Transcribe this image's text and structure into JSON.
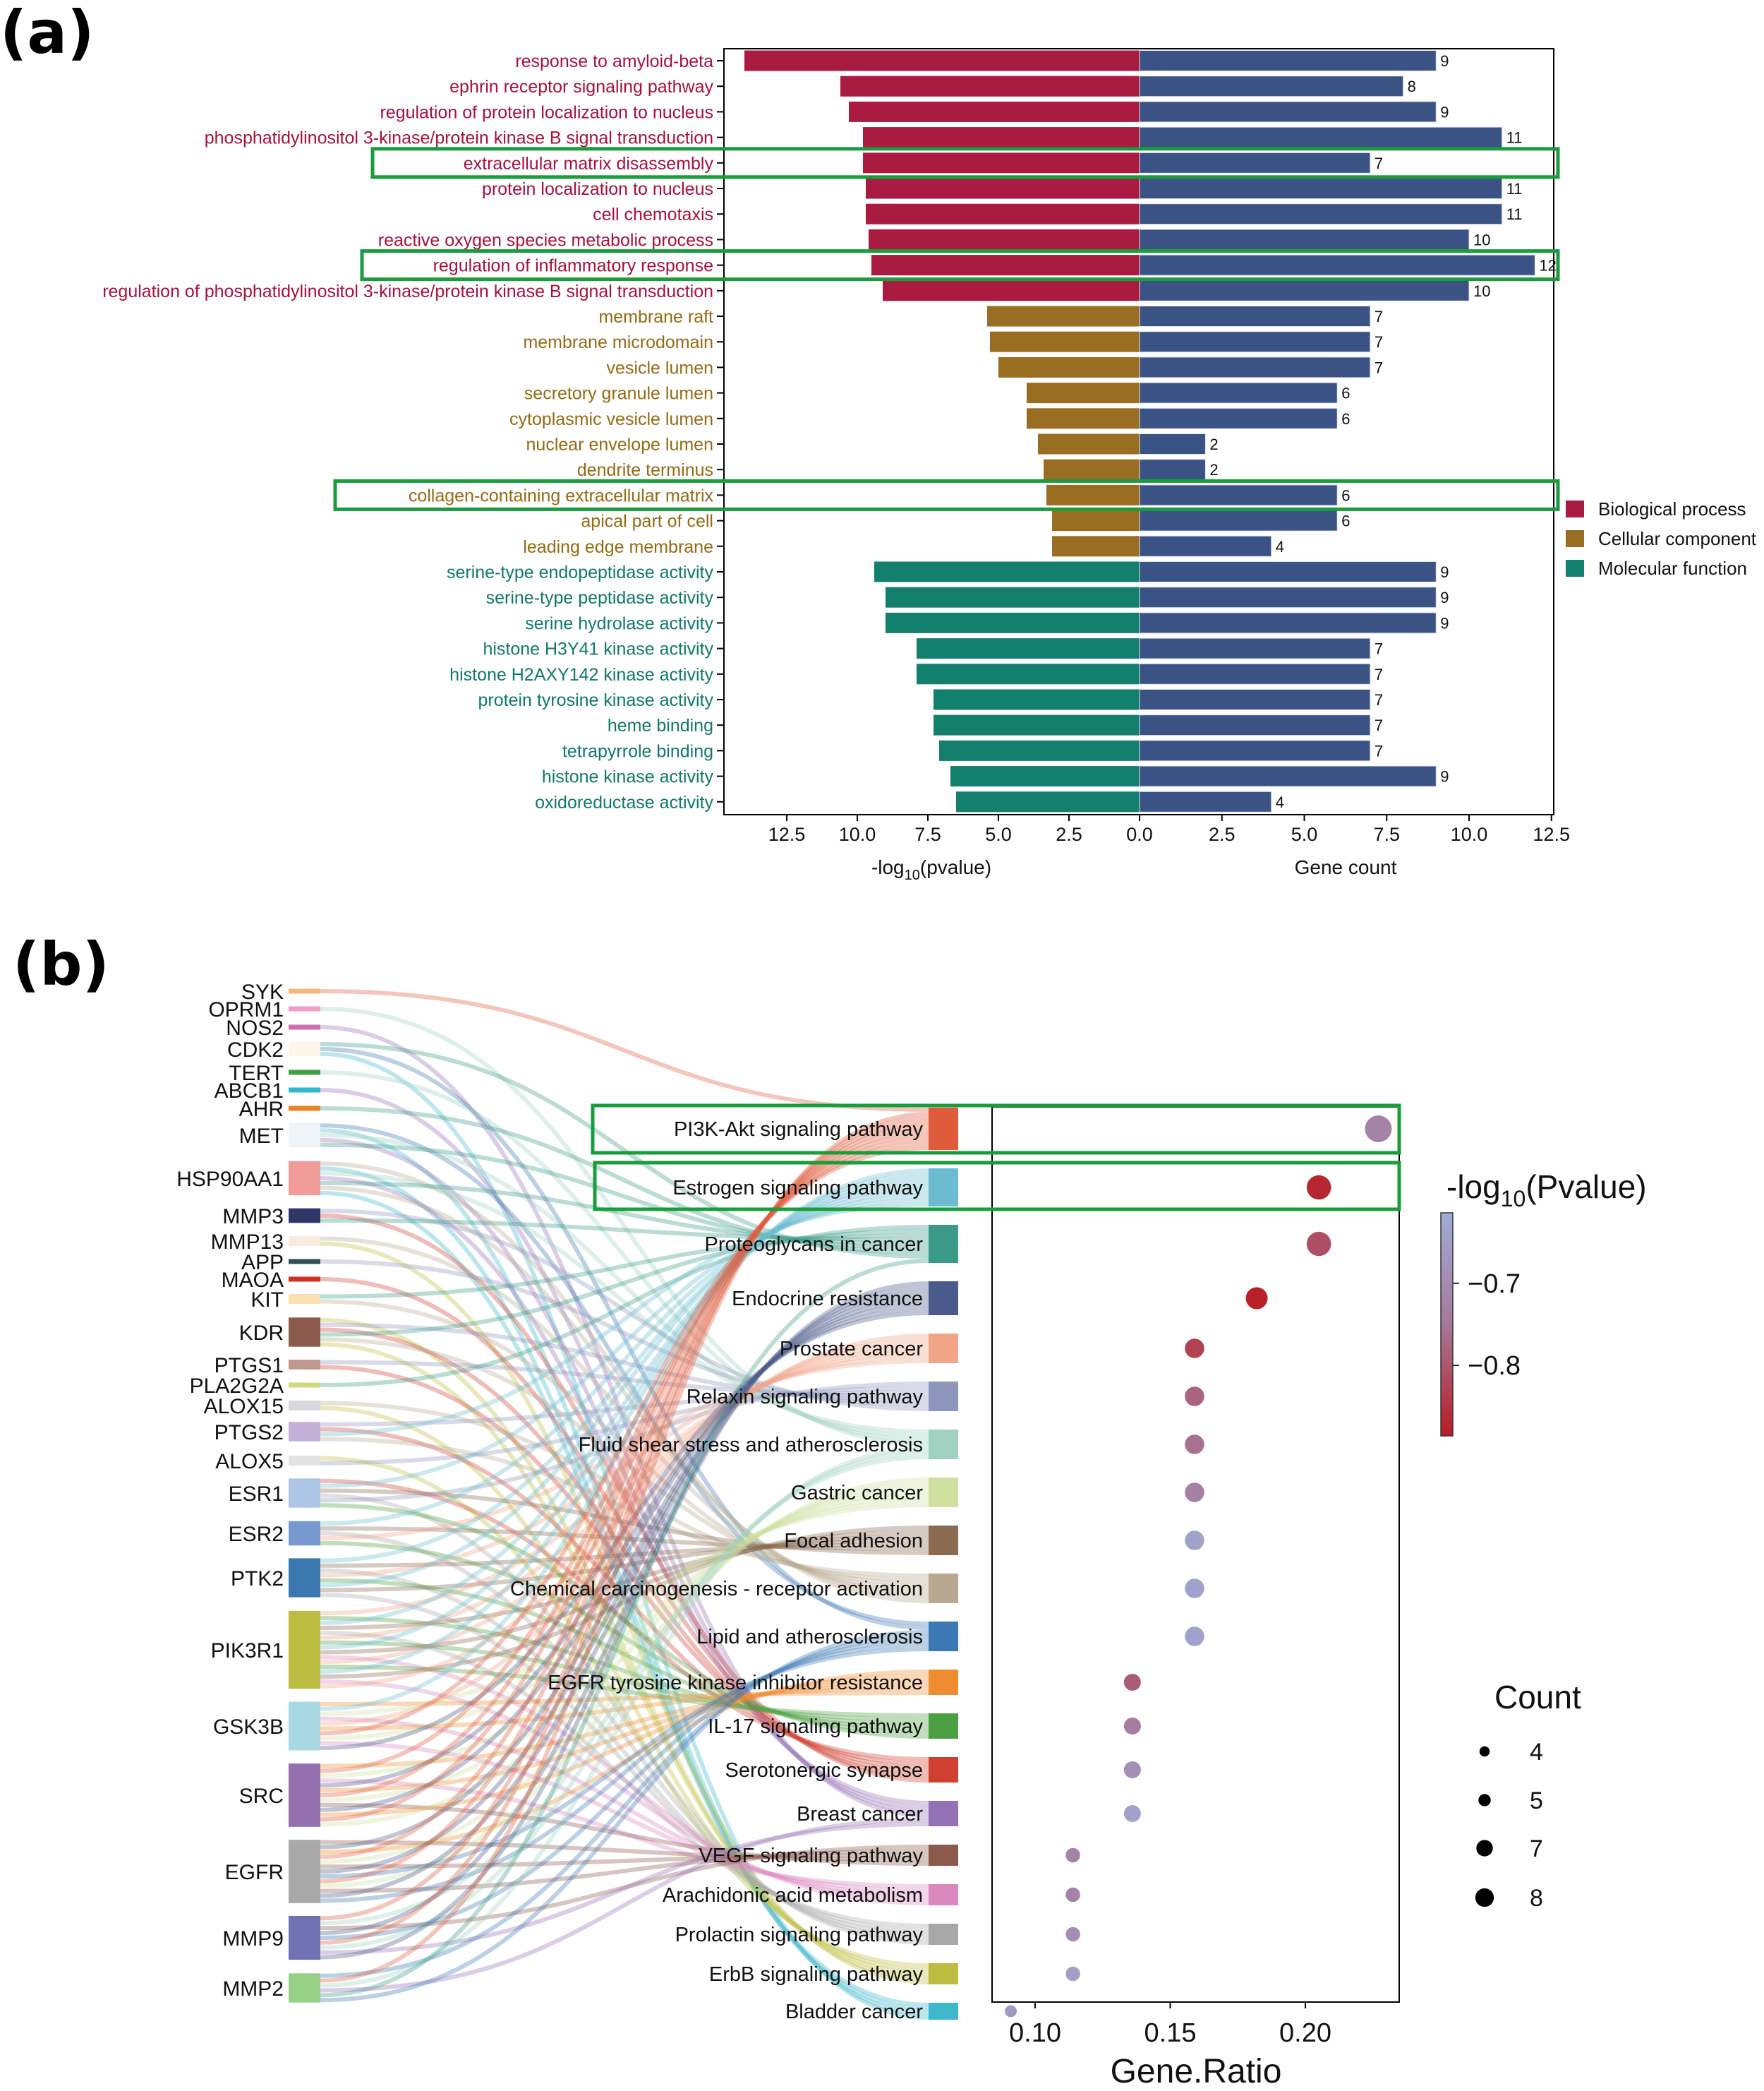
{
  "panel_labels": {
    "a": "(a)",
    "b": "(b)"
  },
  "chart_data": [
    {
      "type": "bar",
      "panel": "(a)",
      "layout": "diverging horizontal bar",
      "categories": [
        "response to amyloid-beta",
        "ephrin receptor signaling pathway",
        "regulation of protein localization to nucleus",
        "phosphatidylinositol 3-kinase/protein kinase B signal transduction",
        "extracellular matrix disassembly",
        "protein localization to nucleus",
        "cell chemotaxis",
        "reactive oxygen species metabolic process",
        "regulation of inflammatory response",
        "regulation of phosphatidylinositol 3-kinase/protein kinase B signal transduction",
        "membrane raft",
        "membrane microdomain",
        "vesicle lumen",
        "secretory granule lumen",
        "cytoplasmic vesicle lumen",
        "nuclear envelope lumen",
        "dendrite terminus",
        "collagen-containing extracellular matrix",
        "apical part of cell",
        "leading edge membrane",
        "serine-type endopeptidase activity",
        "serine-type peptidase activity",
        "serine hydrolase activity",
        "histone H3Y41 kinase activity",
        "histone H2AXY142 kinase activity",
        "protein tyrosine kinase activity",
        "heme binding",
        "tetrapyrrole binding",
        "histone kinase activity",
        "oxidoreductase activity"
      ],
      "group": [
        "BP",
        "BP",
        "BP",
        "BP",
        "BP",
        "BP",
        "BP",
        "BP",
        "BP",
        "BP",
        "CC",
        "CC",
        "CC",
        "CC",
        "CC",
        "CC",
        "CC",
        "CC",
        "CC",
        "CC",
        "MF",
        "MF",
        "MF",
        "MF",
        "MF",
        "MF",
        "MF",
        "MF",
        "MF",
        "MF"
      ],
      "neg_log10_pvalue": [
        14.0,
        10.6,
        10.3,
        9.8,
        9.8,
        9.7,
        9.7,
        9.6,
        9.5,
        9.1,
        5.4,
        5.3,
        5.0,
        4.0,
        4.0,
        3.6,
        3.4,
        3.3,
        3.1,
        3.1,
        9.4,
        9.0,
        9.0,
        7.9,
        7.9,
        7.3,
        7.3,
        7.1,
        6.7,
        6.5
      ],
      "gene_count": [
        9,
        8,
        9,
        11,
        7,
        11,
        11,
        10,
        12,
        10,
        7,
        7,
        7,
        6,
        6,
        2,
        2,
        6,
        6,
        4,
        9,
        9,
        9,
        7,
        7,
        7,
        7,
        7,
        9,
        4
      ],
      "gene_count_labels": [
        "9",
        "8",
        "9",
        "11",
        "7",
        "11",
        "11",
        "10",
        "12",
        "10",
        "7",
        "7",
        "7",
        "6",
        "6",
        "2",
        "2",
        "6",
        "6",
        "4",
        "9",
        "9",
        "9",
        "7",
        "7",
        "7",
        "7",
        "7",
        "9",
        "4"
      ],
      "highlighted": [
        "extracellular matrix disassembly",
        "regulation of inflammatory response",
        "collagen-containing extracellular matrix"
      ],
      "xlabel_left": "-log",
      "xlabel_left_sub": "10",
      "xlabel_left_tail": "(pvalue)",
      "xlabel_right": "Gene count",
      "xlim_left": [
        0,
        14.4
      ],
      "xlim_right": [
        0,
        12.55
      ],
      "left_ticks": [
        "12.5",
        "10.0",
        "7.5",
        "5.0",
        "2.5",
        "0.0"
      ],
      "left_tick_values": [
        12.5,
        10,
        7.5,
        5,
        2.5,
        0
      ],
      "right_ticks": [
        "2.5",
        "5.0",
        "7.5",
        "10.0",
        "12.5"
      ],
      "right_tick_values": [
        2.5,
        5,
        7.5,
        10,
        12.5
      ],
      "grid": false,
      "legend_position": "right",
      "legend": [
        {
          "key": "BP",
          "label": "Biological process",
          "color": "#a91b40"
        },
        {
          "key": "CC",
          "label": "Cellular component",
          "color": "#9a6e22"
        },
        {
          "key": "MF",
          "label": "Molecular function",
          "color": "#137f6d"
        }
      ],
      "count_bar_color": "#3b5284",
      "label_colors": {
        "BP": "#a8103c",
        "CC": "#956a12",
        "MF": "#0f7a66"
      },
      "highlight_color": "#1a9c3c"
    },
    {
      "type": "sankey",
      "panel": "(b)",
      "genes": [
        {
          "name": "SYK",
          "links": 1,
          "color": "#f5b878"
        },
        {
          "name": "OPRM1",
          "links": 1,
          "color": "#f0a0c4"
        },
        {
          "name": "NOS2",
          "links": 1,
          "color": "#cf6fae"
        },
        {
          "name": "CDK2",
          "links": 3,
          "color": "#fff5e8"
        },
        {
          "name": "TERT",
          "links": 1,
          "color": "#40a040"
        },
        {
          "name": "ABCB1",
          "links": 1,
          "color": "#30b8cc"
        },
        {
          "name": "AHR",
          "links": 1,
          "color": "#f08020"
        },
        {
          "name": "MET",
          "links": 5,
          "color": "#eef4f8"
        },
        {
          "name": "HSP90AA1",
          "links": 7,
          "color": "#f29c9a"
        },
        {
          "name": "MMP3",
          "links": 3,
          "color": "#2f3768"
        },
        {
          "name": "MMP13",
          "links": 2,
          "color": "#f8eadc"
        },
        {
          "name": "APP",
          "links": 1,
          "color": "#2f5050"
        },
        {
          "name": "MAOA",
          "links": 1,
          "color": "#d03020"
        },
        {
          "name": "KIT",
          "links": 2,
          "color": "#fde0b0"
        },
        {
          "name": "KDR",
          "links": 6,
          "color": "#8c5a4c"
        },
        {
          "name": "PTGS1",
          "links": 2,
          "color": "#c09890"
        },
        {
          "name": "PLA2G2A",
          "links": 1,
          "color": "#d0d880"
        },
        {
          "name": "ALOX15",
          "links": 2,
          "color": "#d8d8dc"
        },
        {
          "name": "PTGS2",
          "links": 4,
          "color": "#c4b0d8"
        },
        {
          "name": "ALOX5",
          "links": 2,
          "color": "#e2e2e2"
        },
        {
          "name": "ESR1",
          "links": 6,
          "color": "#adc6e6"
        },
        {
          "name": "ESR2",
          "links": 5,
          "color": "#7898d0"
        },
        {
          "name": "PTK2",
          "links": 8,
          "color": "#3c78b0"
        },
        {
          "name": "PIK3R1",
          "links": 16,
          "color": "#bcbc40"
        },
        {
          "name": "GSK3B",
          "links": 10,
          "color": "#a8d8e2"
        },
        {
          "name": "SRC",
          "links": 13,
          "color": "#9470b0"
        },
        {
          "name": "EGFR",
          "links": 13,
          "color": "#a8a8a8"
        },
        {
          "name": "MMP9",
          "links": 9,
          "color": "#7070b4"
        },
        {
          "name": "MMP2",
          "links": 6,
          "color": "#98d088"
        }
      ],
      "pathways": [
        {
          "name": "PI3K-Akt signaling pathway",
          "color": "#e05b3c"
        },
        {
          "name": "Estrogen signaling pathway",
          "color": "#6bbcd0"
        },
        {
          "name": "Proteoglycans in cancer",
          "color": "#3a9a88"
        },
        {
          "name": "Endocrine resistance",
          "color": "#4a5a8a"
        },
        {
          "name": "Prostate cancer",
          "color": "#f0a488"
        },
        {
          "name": "Relaxin signaling pathway",
          "color": "#8e96be"
        },
        {
          "name": "Fluid shear stress and atherosclerosis",
          "color": "#9fd0c0"
        },
        {
          "name": "Gastric cancer",
          "color": "#cfe0a0"
        },
        {
          "name": "Focal adhesion",
          "color": "#8a6a50"
        },
        {
          "name": "Chemical carcinogenesis - receptor activation",
          "color": "#b8a890"
        },
        {
          "name": "Lipid and atherosclerosis",
          "color": "#3c78b4"
        },
        {
          "name": "EGFR tyrosine kinase inhibitor resistance",
          "color": "#f08c30"
        },
        {
          "name": "IL-17 signaling pathway",
          "color": "#4aa040"
        },
        {
          "name": "Serotonergic synapse",
          "color": "#d04030"
        },
        {
          "name": "Breast cancer",
          "color": "#9470b4"
        },
        {
          "name": "VEGF signaling pathway",
          "color": "#8c5a4c"
        },
        {
          "name": "Arachidonic acid metabolism",
          "color": "#dc88c0"
        },
        {
          "name": "Prolactin signaling pathway",
          "color": "#a8a8a8"
        },
        {
          "name": "ErbB signaling pathway",
          "color": "#bcbc40"
        },
        {
          "name": "Bladder cancer",
          "color": "#40b8cc"
        }
      ],
      "highlighted": [
        "PI3K-Akt signaling pathway",
        "Estrogen signaling pathway"
      ]
    },
    {
      "type": "scatter",
      "panel": "(b)",
      "layout": "dot plot",
      "categories": [
        "PI3K-Akt signaling pathway",
        "Estrogen signaling pathway",
        "Proteoglycans in cancer",
        "Endocrine resistance",
        "Prostate cancer",
        "Relaxin signaling pathway",
        "Fluid shear stress and atherosclerosis",
        "Gastric cancer",
        "Focal adhesion",
        "Chemical carcinogenesis - receptor activation",
        "Lipid and atherosclerosis",
        "EGFR tyrosine kinase inhibitor resistance",
        "IL-17 signaling pathway",
        "Serotonergic synapse",
        "Breast cancer",
        "VEGF signaling pathway",
        "Arachidonic acid metabolism",
        "Prolactin signaling pathway",
        "ErbB signaling pathway",
        "Bladder cancer"
      ],
      "gene_ratio": [
        0.227,
        0.205,
        0.205,
        0.182,
        0.159,
        0.159,
        0.159,
        0.159,
        0.159,
        0.159,
        0.159,
        0.136,
        0.136,
        0.136,
        0.136,
        0.114,
        0.114,
        0.114,
        0.114,
        0.091
      ],
      "count": [
        10,
        9,
        9,
        8,
        7,
        7,
        7,
        7,
        7,
        7,
        7,
        6,
        6,
        6,
        6,
        5,
        5,
        5,
        5,
        4
      ],
      "neg_log10_pvalue": [
        -0.72,
        -0.87,
        -0.81,
        -0.88,
        -0.83,
        -0.78,
        -0.76,
        -0.73,
        -0.64,
        -0.64,
        -0.64,
        -0.79,
        -0.74,
        -0.69,
        -0.64,
        -0.72,
        -0.72,
        -0.69,
        -0.65,
        -0.66
      ],
      "xlabel": "Gene.Ratio",
      "xlim": [
        0.084,
        0.234
      ],
      "x_ticks": [
        "0.10",
        "0.15",
        "0.20"
      ],
      "x_tick_values": [
        0.1,
        0.15,
        0.2
      ],
      "colorbar": {
        "title": "-log",
        "title_sub": "10",
        "title_tail": "(Pvalue)",
        "range": [
          -0.886,
          -0.614
        ],
        "ticks": [
          "−0.7",
          "−0.8"
        ],
        "tick_values": [
          -0.7,
          -0.8
        ],
        "colors": [
          "#a0acd8",
          "#a6789a",
          "#b81c22"
        ]
      },
      "size_legend": {
        "title": "Count",
        "values": [
          4,
          5,
          7,
          8
        ],
        "labels": [
          "4",
          "5",
          "7",
          "8"
        ]
      },
      "legend_position": "right",
      "grid": false,
      "highlight_color": "#1a9c3c"
    }
  ]
}
